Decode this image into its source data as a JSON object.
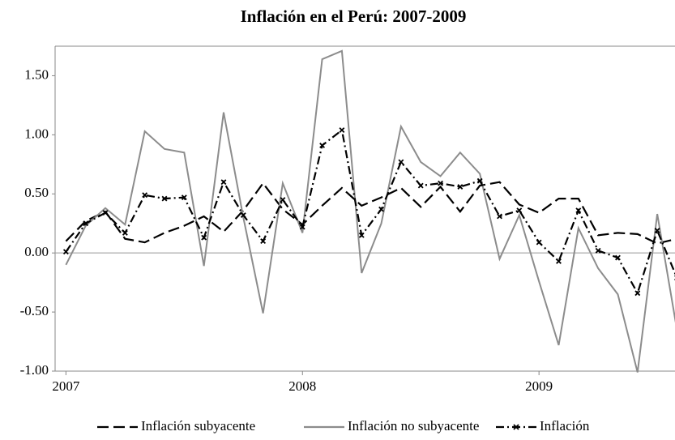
{
  "chart_data": {
    "type": "line",
    "title": "Inflación en el Perú: 2007-2009",
    "x": [
      0,
      1,
      2,
      3,
      4,
      5,
      6,
      7,
      8,
      9,
      10,
      11,
      12,
      13,
      14,
      15,
      16,
      17,
      18,
      19,
      20,
      21,
      22,
      23,
      24,
      25,
      26,
      27,
      28,
      29,
      30,
      31
    ],
    "xlim": [
      -0.55,
      30.9
    ],
    "xticks": [
      {
        "value": 0,
        "label": "2007"
      },
      {
        "value": 12,
        "label": "2008"
      },
      {
        "value": 24,
        "label": "2009"
      }
    ],
    "ylim": [
      -1,
      1.75
    ],
    "yticks": [
      {
        "value": -1,
        "label": "-1.00"
      },
      {
        "value": -0.5,
        "label": "-0.50"
      },
      {
        "value": 0,
        "label": "0.00"
      },
      {
        "value": 0.5,
        "label": "0.50"
      },
      {
        "value": 1,
        "label": "1.00"
      },
      {
        "value": 1.5,
        "label": "1.50"
      }
    ],
    "series": [
      {
        "name": "Inflación subyacente",
        "color": "#000000",
        "line_style": "dashed",
        "values": [
          0.1,
          0.27,
          0.35,
          0.12,
          0.09,
          0.17,
          0.23,
          0.31,
          0.18,
          0.36,
          0.59,
          0.37,
          0.24,
          0.4,
          0.55,
          0.4,
          0.47,
          0.55,
          0.39,
          0.56,
          0.35,
          0.57,
          0.6,
          0.41,
          0.34,
          0.46,
          0.46,
          0.15,
          0.17,
          0.16,
          0.08,
          0.12
        ]
      },
      {
        "name": "Inflación no subyacente",
        "color": "#8c8c8c",
        "line_style": "solid",
        "values": [
          -0.1,
          0.23,
          0.38,
          0.24,
          1.03,
          0.88,
          0.85,
          -0.11,
          1.19,
          0.3,
          -0.51,
          0.59,
          0.17,
          1.64,
          1.71,
          -0.17,
          0.25,
          1.07,
          0.77,
          0.65,
          0.85,
          0.67,
          -0.05,
          0.32,
          -0.24,
          -0.78,
          0.21,
          -0.13,
          -0.35,
          -1.01,
          0.33,
          -0.65
        ]
      },
      {
        "name": "Inflación",
        "color": "#000000",
        "line_style": "dash-dot",
        "marker": "x",
        "values": [
          0.01,
          0.25,
          0.34,
          0.17,
          0.49,
          0.46,
          0.47,
          0.13,
          0.6,
          0.32,
          0.1,
          0.45,
          0.22,
          0.91,
          1.04,
          0.15,
          0.37,
          0.77,
          0.57,
          0.59,
          0.56,
          0.61,
          0.31,
          0.36,
          0.09,
          -0.07,
          0.36,
          0.02,
          -0.04,
          -0.34,
          0.19,
          -0.21
        ]
      }
    ]
  }
}
